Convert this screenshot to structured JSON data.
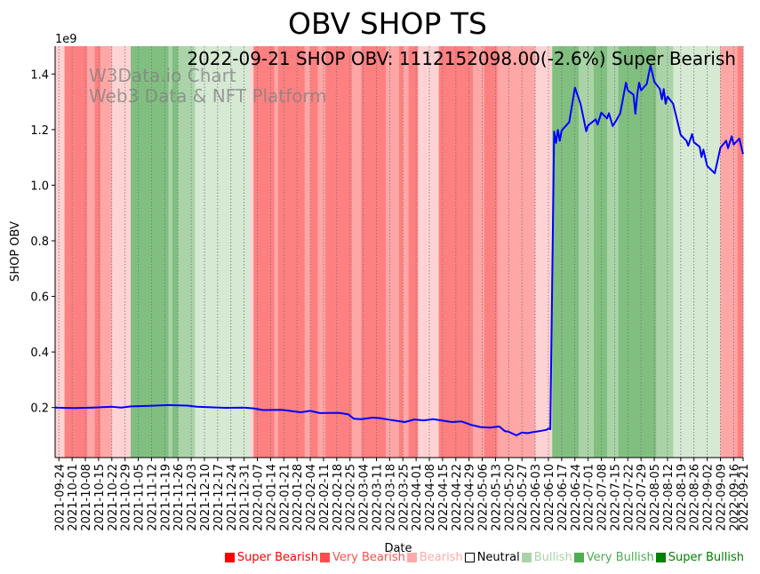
{
  "chart_data": {
    "type": "line",
    "title": "OBV SHOP TS",
    "subtitle": "2022-09-21 SHOP OBV: 1112152098.00(-2.6%) Super Bearish",
    "watermark": [
      "W3Data.io Chart",
      "Web3 Data & NFT Platform"
    ],
    "xlabel": "Date",
    "ylabel": "SHOP OBV",
    "y_scale_label": "1e9",
    "ylim": [
      0.02,
      1.5
    ],
    "yticks": [
      0.2,
      0.4,
      0.6,
      0.8,
      1.0,
      1.2,
      1.4
    ],
    "x_start": "2021-09-22",
    "x_end": "2022-09-21",
    "x_unit": "days since x_start",
    "xticks": [
      "2021-09-24",
      "2021-10-01",
      "2021-10-08",
      "2021-10-15",
      "2021-10-22",
      "2021-10-29",
      "2021-11-05",
      "2021-11-12",
      "2021-11-19",
      "2021-11-26",
      "2021-12-03",
      "2021-12-10",
      "2021-12-17",
      "2021-12-24",
      "2021-12-31",
      "2022-01-07",
      "2022-01-14",
      "2022-01-21",
      "2022-01-28",
      "2022-02-04",
      "2022-02-11",
      "2022-02-18",
      "2022-02-25",
      "2022-03-04",
      "2022-03-11",
      "2022-03-18",
      "2022-03-25",
      "2022-04-01",
      "2022-04-08",
      "2022-04-15",
      "2022-04-22",
      "2022-04-29",
      "2022-05-06",
      "2022-05-13",
      "2022-05-20",
      "2022-05-27",
      "2022-06-03",
      "2022-06-10",
      "2022-06-17",
      "2022-06-24",
      "2022-07-01",
      "2022-07-08",
      "2022-07-15",
      "2022-07-22",
      "2022-07-29",
      "2022-08-05",
      "2022-08-12",
      "2022-08-19",
      "2022-08-26",
      "2022-09-02",
      "2022-09-09",
      "2022-09-16",
      "2022-09-21"
    ],
    "series": [
      {
        "name": "SHOP OBV (1e9)",
        "color": "#0000ff",
        "points": [
          [
            0,
            0.2
          ],
          [
            10,
            0.198
          ],
          [
            20,
            0.2
          ],
          [
            30,
            0.203
          ],
          [
            35,
            0.2
          ],
          [
            40,
            0.204
          ],
          [
            50,
            0.206
          ],
          [
            60,
            0.209
          ],
          [
            70,
            0.207
          ],
          [
            75,
            0.203
          ],
          [
            90,
            0.199
          ],
          [
            100,
            0.2
          ],
          [
            105,
            0.197
          ],
          [
            110,
            0.191
          ],
          [
            120,
            0.192
          ],
          [
            130,
            0.183
          ],
          [
            135,
            0.188
          ],
          [
            140,
            0.18
          ],
          [
            150,
            0.181
          ],
          [
            155,
            0.176
          ],
          [
            158,
            0.16
          ],
          [
            162,
            0.158
          ],
          [
            168,
            0.164
          ],
          [
            172,
            0.162
          ],
          [
            178,
            0.155
          ],
          [
            185,
            0.148
          ],
          [
            190,
            0.157
          ],
          [
            195,
            0.154
          ],
          [
            200,
            0.158
          ],
          [
            205,
            0.153
          ],
          [
            210,
            0.148
          ],
          [
            215,
            0.15
          ],
          [
            220,
            0.138
          ],
          [
            225,
            0.13
          ],
          [
            230,
            0.128
          ],
          [
            235,
            0.132
          ],
          [
            238,
            0.115
          ],
          [
            240,
            0.113
          ],
          [
            244,
            0.1
          ],
          [
            247,
            0.11
          ],
          [
            250,
            0.108
          ],
          [
            253,
            0.112
          ],
          [
            256,
            0.115
          ],
          [
            260,
            0.12
          ],
          [
            261,
            0.125
          ],
          [
            262,
            0.122
          ],
          [
            264,
            1.193
          ],
          [
            265,
            1.152
          ],
          [
            266,
            1.199
          ],
          [
            267,
            1.16
          ],
          [
            268,
            1.197
          ],
          [
            272,
            1.227
          ],
          [
            275,
            1.351
          ],
          [
            278,
            1.293
          ],
          [
            281,
            1.194
          ],
          [
            282,
            1.215
          ],
          [
            286,
            1.237
          ],
          [
            287,
            1.218
          ],
          [
            289,
            1.261
          ],
          [
            292,
            1.24
          ],
          [
            293,
            1.259
          ],
          [
            295,
            1.213
          ],
          [
            297,
            1.234
          ],
          [
            299,
            1.259
          ],
          [
            302,
            1.369
          ],
          [
            303,
            1.341
          ],
          [
            306,
            1.325
          ],
          [
            307,
            1.257
          ],
          [
            308,
            1.325
          ],
          [
            309,
            1.369
          ],
          [
            310,
            1.341
          ],
          [
            313,
            1.364
          ],
          [
            315,
            1.431
          ],
          [
            317,
            1.372
          ],
          [
            320,
            1.346
          ],
          [
            321,
            1.309
          ],
          [
            322,
            1.346
          ],
          [
            323,
            1.293
          ],
          [
            324,
            1.319
          ],
          [
            327,
            1.293
          ],
          [
            331,
            1.181
          ],
          [
            334,
            1.16
          ],
          [
            335,
            1.142
          ],
          [
            337,
            1.184
          ],
          [
            338,
            1.154
          ],
          [
            341,
            1.138
          ],
          [
            342,
            1.101
          ],
          [
            343,
            1.128
          ],
          [
            345,
            1.069
          ],
          [
            349,
            1.043
          ],
          [
            352,
            1.135
          ],
          [
            355,
            1.16
          ],
          [
            356,
            1.133
          ],
          [
            358,
            1.176
          ],
          [
            359,
            1.146
          ],
          [
            362,
            1.168
          ],
          [
            364,
            1.112
          ]
        ]
      }
    ],
    "sentiment_bands": [
      [
        0,
        5,
        -1
      ],
      [
        5,
        17,
        -3
      ],
      [
        17,
        21,
        -2
      ],
      [
        21,
        24,
        -3
      ],
      [
        24,
        30,
        -2
      ],
      [
        30,
        40,
        -1
      ],
      [
        40,
        60,
        3
      ],
      [
        60,
        62,
        2
      ],
      [
        62,
        65,
        3
      ],
      [
        65,
        74,
        2
      ],
      [
        74,
        103,
        1
      ],
      [
        103,
        105,
        -1
      ],
      [
        105,
        116,
        -3
      ],
      [
        116,
        118,
        -2
      ],
      [
        118,
        132,
        -3
      ],
      [
        132,
        135,
        -2
      ],
      [
        135,
        139,
        -3
      ],
      [
        139,
        143,
        -2
      ],
      [
        143,
        157,
        -3
      ],
      [
        157,
        162,
        -2
      ],
      [
        162,
        175,
        -3
      ],
      [
        175,
        182,
        -2
      ],
      [
        182,
        184,
        -3
      ],
      [
        184,
        187,
        -2
      ],
      [
        187,
        192,
        -3
      ],
      [
        192,
        203,
        -1
      ],
      [
        203,
        221,
        -3
      ],
      [
        221,
        227,
        -2
      ],
      [
        227,
        234,
        -3
      ],
      [
        234,
        254,
        -2
      ],
      [
        254,
        263,
        -1
      ],
      [
        263,
        277,
        3
      ],
      [
        277,
        285,
        2
      ],
      [
        285,
        292,
        3
      ],
      [
        292,
        298,
        2
      ],
      [
        298,
        318,
        3
      ],
      [
        318,
        327,
        2
      ],
      [
        327,
        352,
        1
      ],
      [
        352,
        361,
        -2
      ],
      [
        361,
        364,
        -3
      ]
    ],
    "band_colors": {
      "-3": "#ff8080",
      "-2": "#ffa6a6",
      "-1": "#ffd3d3",
      "0": "#ffffff",
      "1": "#d5e9d3",
      "2": "#aad4a8",
      "3": "#80bf80"
    },
    "legend": [
      {
        "label": "Super Bearish",
        "color": "#ff0000",
        "text_color": "#ff0000"
      },
      {
        "label": "Very Bearish",
        "color": "#ff4d4d",
        "text_color": "#ff4d4d"
      },
      {
        "label": "Bearish",
        "color": "#ffaaaa",
        "text_color": "#ffaaaa"
      },
      {
        "label": "Neutral",
        "color": "#ffffff",
        "text_color": "#000000"
      },
      {
        "label": "Bullish",
        "color": "#aad4a8",
        "text_color": "#aad4a8"
      },
      {
        "label": "Very Bullish",
        "color": "#4caf50",
        "text_color": "#4caf50"
      },
      {
        "label": "Super Bullish",
        "color": "#008000",
        "text_color": "#008000"
      }
    ],
    "legend_placement": "bottom-right",
    "grid": "vertical dotted"
  }
}
